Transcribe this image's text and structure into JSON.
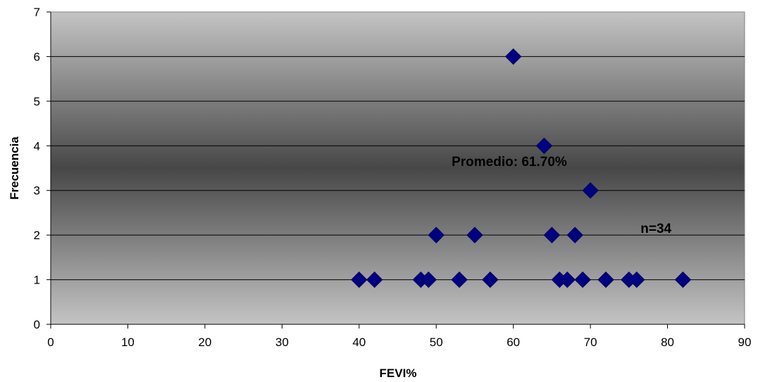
{
  "chart_data": {
    "type": "scatter",
    "title": "",
    "xlabel": "FEVI%",
    "ylabel": "Frecuencia",
    "xlim": [
      0,
      90
    ],
    "ylim": [
      0,
      7
    ],
    "xticks": [
      "0",
      "10",
      "20",
      "30",
      "40",
      "50",
      "60",
      "70",
      "80",
      "90"
    ],
    "yticks": [
      "0",
      "1",
      "2",
      "3",
      "4",
      "5",
      "6",
      "7"
    ],
    "grid": "horizontal",
    "legend": "none",
    "marker": "diamond",
    "marker_color": "#000080",
    "points": [
      {
        "x": 40,
        "y": 1
      },
      {
        "x": 42,
        "y": 1
      },
      {
        "x": 48,
        "y": 1
      },
      {
        "x": 49,
        "y": 1
      },
      {
        "x": 50,
        "y": 2
      },
      {
        "x": 53,
        "y": 1
      },
      {
        "x": 55,
        "y": 2
      },
      {
        "x": 57,
        "y": 1
      },
      {
        "x": 60,
        "y": 6
      },
      {
        "x": 64,
        "y": 4
      },
      {
        "x": 65,
        "y": 2
      },
      {
        "x": 66,
        "y": 1
      },
      {
        "x": 67,
        "y": 1
      },
      {
        "x": 68,
        "y": 2
      },
      {
        "x": 69,
        "y": 1
      },
      {
        "x": 70,
        "y": 3
      },
      {
        "x": 72,
        "y": 1
      },
      {
        "x": 75,
        "y": 1
      },
      {
        "x": 76,
        "y": 1
      },
      {
        "x": 82,
        "y": 1
      }
    ],
    "annotations": [
      {
        "text": "Promedio: 61.70%",
        "x": 52,
        "y": 3.55
      },
      {
        "text": "n=34",
        "x": 76.5,
        "y": 2.05
      }
    ]
  }
}
